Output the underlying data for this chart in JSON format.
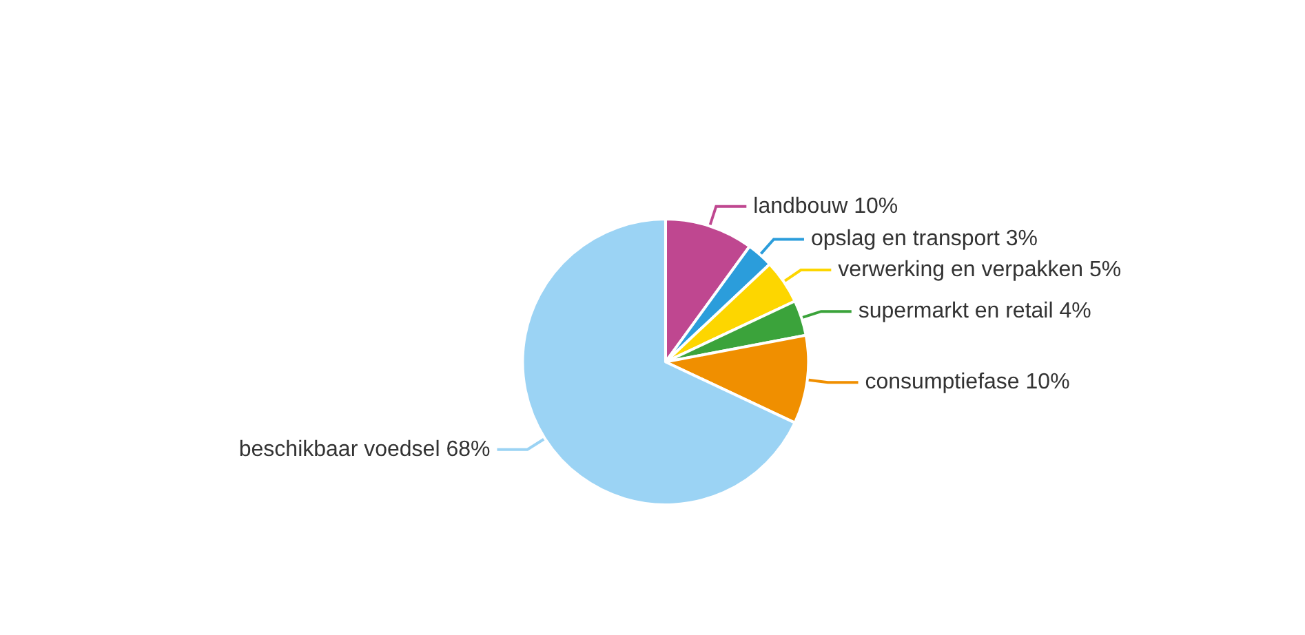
{
  "chart_data": {
    "type": "pie",
    "categories": [
      "landbouw",
      "opslag en transport",
      "verwerking en verpakken",
      "supermarkt en retail",
      "consumptiefase",
      "beschikbaar voedsel"
    ],
    "values": [
      10,
      3,
      5,
      4,
      10,
      68
    ],
    "colors": [
      "#bf4790",
      "#2b9ddb",
      "#fdd600",
      "#3ba33b",
      "#f08f00",
      "#9bd3f4"
    ],
    "value_labels": [
      "10%",
      "3%",
      "5%",
      "4%",
      "10%",
      "68%"
    ],
    "data_labels": true,
    "legend": false
  }
}
